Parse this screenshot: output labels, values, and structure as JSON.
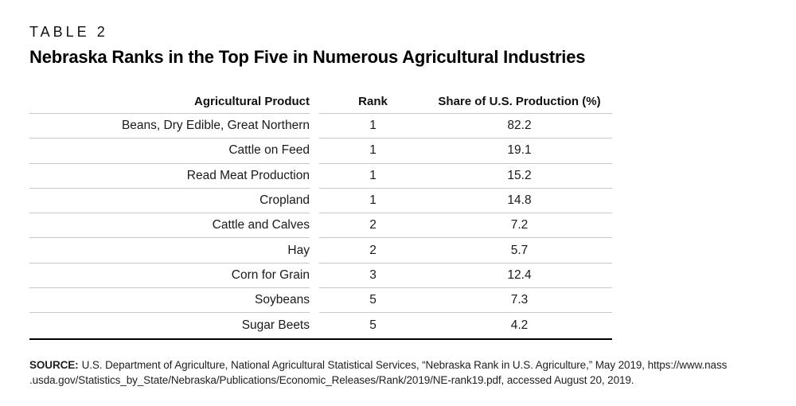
{
  "document": {
    "kicker": "TABLE 2",
    "title": "Nebraska Ranks in the Top Five in Numerous Agricultural Industries"
  },
  "table": {
    "columns": {
      "product": "Agricultural Product",
      "rank": "Rank",
      "share": "Share of U.S. Production (%)"
    },
    "rows": [
      {
        "product": "Beans, Dry Edible, Great Northern",
        "rank": "1",
        "share": "82.2"
      },
      {
        "product": "Cattle on Feed",
        "rank": "1",
        "share": "19.1"
      },
      {
        "product": "Read Meat Production",
        "rank": "1",
        "share": "15.2"
      },
      {
        "product": "Cropland",
        "rank": "1",
        "share": "14.8"
      },
      {
        "product": "Cattle and Calves",
        "rank": "2",
        "share": "7.2"
      },
      {
        "product": "Hay",
        "rank": "2",
        "share": "5.7"
      },
      {
        "product": "Corn for Grain",
        "rank": "3",
        "share": "12.4"
      },
      {
        "product": "Soybeans",
        "rank": "5",
        "share": "7.3"
      },
      {
        "product": "Sugar Beets",
        "rank": "5",
        "share": "4.2"
      }
    ]
  },
  "chart_data": {
    "type": "table",
    "title": "Nebraska Ranks in the Top Five in Numerous Agricultural Industries",
    "columns": [
      "Agricultural Product",
      "Rank",
      "Share of U.S. Production (%)"
    ],
    "categories": [
      "Beans, Dry Edible, Great Northern",
      "Cattle on Feed",
      "Read Meat Production",
      "Cropland",
      "Cattle and Calves",
      "Hay",
      "Corn for Grain",
      "Soybeans",
      "Sugar Beets"
    ],
    "series": [
      {
        "name": "Rank",
        "values": [
          1,
          1,
          1,
          1,
          2,
          2,
          3,
          5,
          5
        ]
      },
      {
        "name": "Share of U.S. Production (%)",
        "values": [
          82.2,
          19.1,
          15.2,
          14.8,
          7.2,
          5.7,
          12.4,
          7.3,
          4.2
        ]
      }
    ]
  },
  "footer": {
    "source_label": "SOURCE:",
    "source_line1": "U.S. Department of Agriculture, National Agricultural Statistical Services, “Nebraska Rank in U.S. Agriculture,” May 2019, https://www.nass",
    "source_line2": ".usda.gov/Statistics_by_State/Nebraska/Publications/Economic_Releases/Rank/2019/NE-rank19.pdf, accessed August 20, 2019."
  },
  "colors": {
    "text": "#1a1a1a",
    "row_line": "#c7c7c7",
    "bottom_rule": "#000000",
    "background": "#ffffff"
  }
}
